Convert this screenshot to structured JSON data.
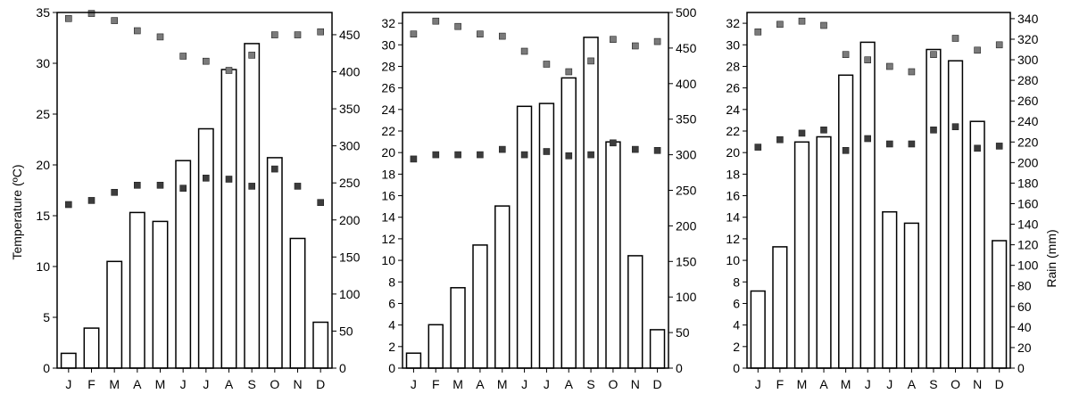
{
  "figure": {
    "ylabel_left": "Temperature (ºC)",
    "ylabel_right": "Rain (mm)"
  },
  "colors": {
    "bar_fill": "#ffffff",
    "bar_stroke": "#000000",
    "marker_max": "#7a7a7a",
    "marker_min": "#3c3c3c"
  },
  "chart_data": [
    {
      "type": "bar",
      "categories": [
        "J",
        "F",
        "M",
        "A",
        "M",
        "J",
        "J",
        "A",
        "S",
        "O",
        "N",
        "D"
      ],
      "left_axis": {
        "ylim": [
          0,
          35
        ],
        "ticks": [
          "0",
          "5",
          "10",
          "15",
          "20",
          "25",
          "30",
          "35"
        ],
        "label": "Temperature (ºC)"
      },
      "right_axis": {
        "ylim": [
          0,
          480
        ],
        "ticks": [
          "0",
          "50",
          "100",
          "150",
          "200",
          "250",
          "300",
          "350",
          "400",
          "450"
        ],
        "label": ""
      },
      "series": [
        {
          "name": "",
          "kind": "bar",
          "axis": "right",
          "values": [
            20,
            54,
            144,
            210,
            198,
            280,
            323,
            403,
            438,
            284,
            175,
            62
          ]
        },
        {
          "name": "",
          "kind": "marker",
          "axis": "left",
          "values": [
            34.4,
            34.9,
            34.2,
            33.2,
            32.6,
            30.7,
            30.2,
            29.3,
            30.8,
            32.8,
            32.8,
            33.1
          ]
        },
        {
          "name": "",
          "kind": "marker",
          "axis": "left",
          "values": [
            16.1,
            16.5,
            17.3,
            18.0,
            18.0,
            17.7,
            18.7,
            18.6,
            17.9,
            19.6,
            17.9,
            16.3
          ]
        }
      ]
    },
    {
      "type": "bar",
      "categories": [
        "J",
        "F",
        "M",
        "A",
        "M",
        "J",
        "J",
        "A",
        "S",
        "O",
        "N",
        "D"
      ],
      "left_axis": {
        "ylim": [
          0,
          33
        ],
        "ticks": [
          "0",
          "2",
          "4",
          "6",
          "8",
          "10",
          "12",
          "14",
          "16",
          "18",
          "20",
          "22",
          "24",
          "26",
          "28",
          "30",
          "32"
        ],
        "label": ""
      },
      "right_axis": {
        "ylim": [
          0,
          500
        ],
        "ticks": [
          "0",
          "50",
          "100",
          "150",
          "200",
          "250",
          "300",
          "350",
          "400",
          "450",
          "500"
        ],
        "label": ""
      },
      "series": [
        {
          "name": "",
          "kind": "bar",
          "axis": "right",
          "values": [
            21,
            61,
            113,
            173,
            228,
            368,
            372,
            408,
            465,
            318,
            158,
            54
          ]
        },
        {
          "name": "",
          "kind": "marker",
          "axis": "left",
          "values": [
            31.0,
            32.2,
            31.7,
            31.0,
            30.8,
            29.4,
            28.2,
            27.5,
            28.5,
            30.5,
            29.9,
            30.3
          ]
        },
        {
          "name": "",
          "kind": "marker",
          "axis": "left",
          "values": [
            19.4,
            19.8,
            19.8,
            19.8,
            20.3,
            19.8,
            20.1,
            19.7,
            19.8,
            20.9,
            20.3,
            20.2
          ]
        }
      ]
    },
    {
      "type": "bar",
      "categories": [
        "J",
        "F",
        "M",
        "A",
        "M",
        "J",
        "J",
        "A",
        "S",
        "O",
        "N",
        "D"
      ],
      "left_axis": {
        "ylim": [
          0,
          33
        ],
        "ticks": [
          "0",
          "2",
          "4",
          "6",
          "8",
          "10",
          "12",
          "14",
          "16",
          "18",
          "20",
          "22",
          "24",
          "26",
          "28",
          "30",
          "32"
        ],
        "label": ""
      },
      "right_axis": {
        "ylim": [
          0,
          346
        ],
        "ticks": [
          "0",
          "20",
          "40",
          "60",
          "80",
          "100",
          "120",
          "140",
          "160",
          "180",
          "200",
          "220",
          "240",
          "260",
          "280",
          "300",
          "320",
          "340"
        ],
        "label": "Rain (mm)"
      },
      "series": [
        {
          "name": "",
          "kind": "bar",
          "axis": "right",
          "values": [
            75,
            118,
            220,
            225,
            285,
            317,
            152,
            141,
            310,
            299,
            240,
            124
          ]
        },
        {
          "name": "",
          "kind": "marker",
          "axis": "left",
          "values": [
            31.2,
            31.9,
            32.2,
            31.8,
            29.1,
            28.6,
            28.0,
            27.5,
            29.1,
            30.6,
            29.5,
            30.0
          ]
        },
        {
          "name": "",
          "kind": "marker",
          "axis": "left",
          "values": [
            20.5,
            21.2,
            21.8,
            22.1,
            20.2,
            21.3,
            20.8,
            20.8,
            22.1,
            22.4,
            20.4,
            20.6
          ]
        }
      ]
    }
  ]
}
